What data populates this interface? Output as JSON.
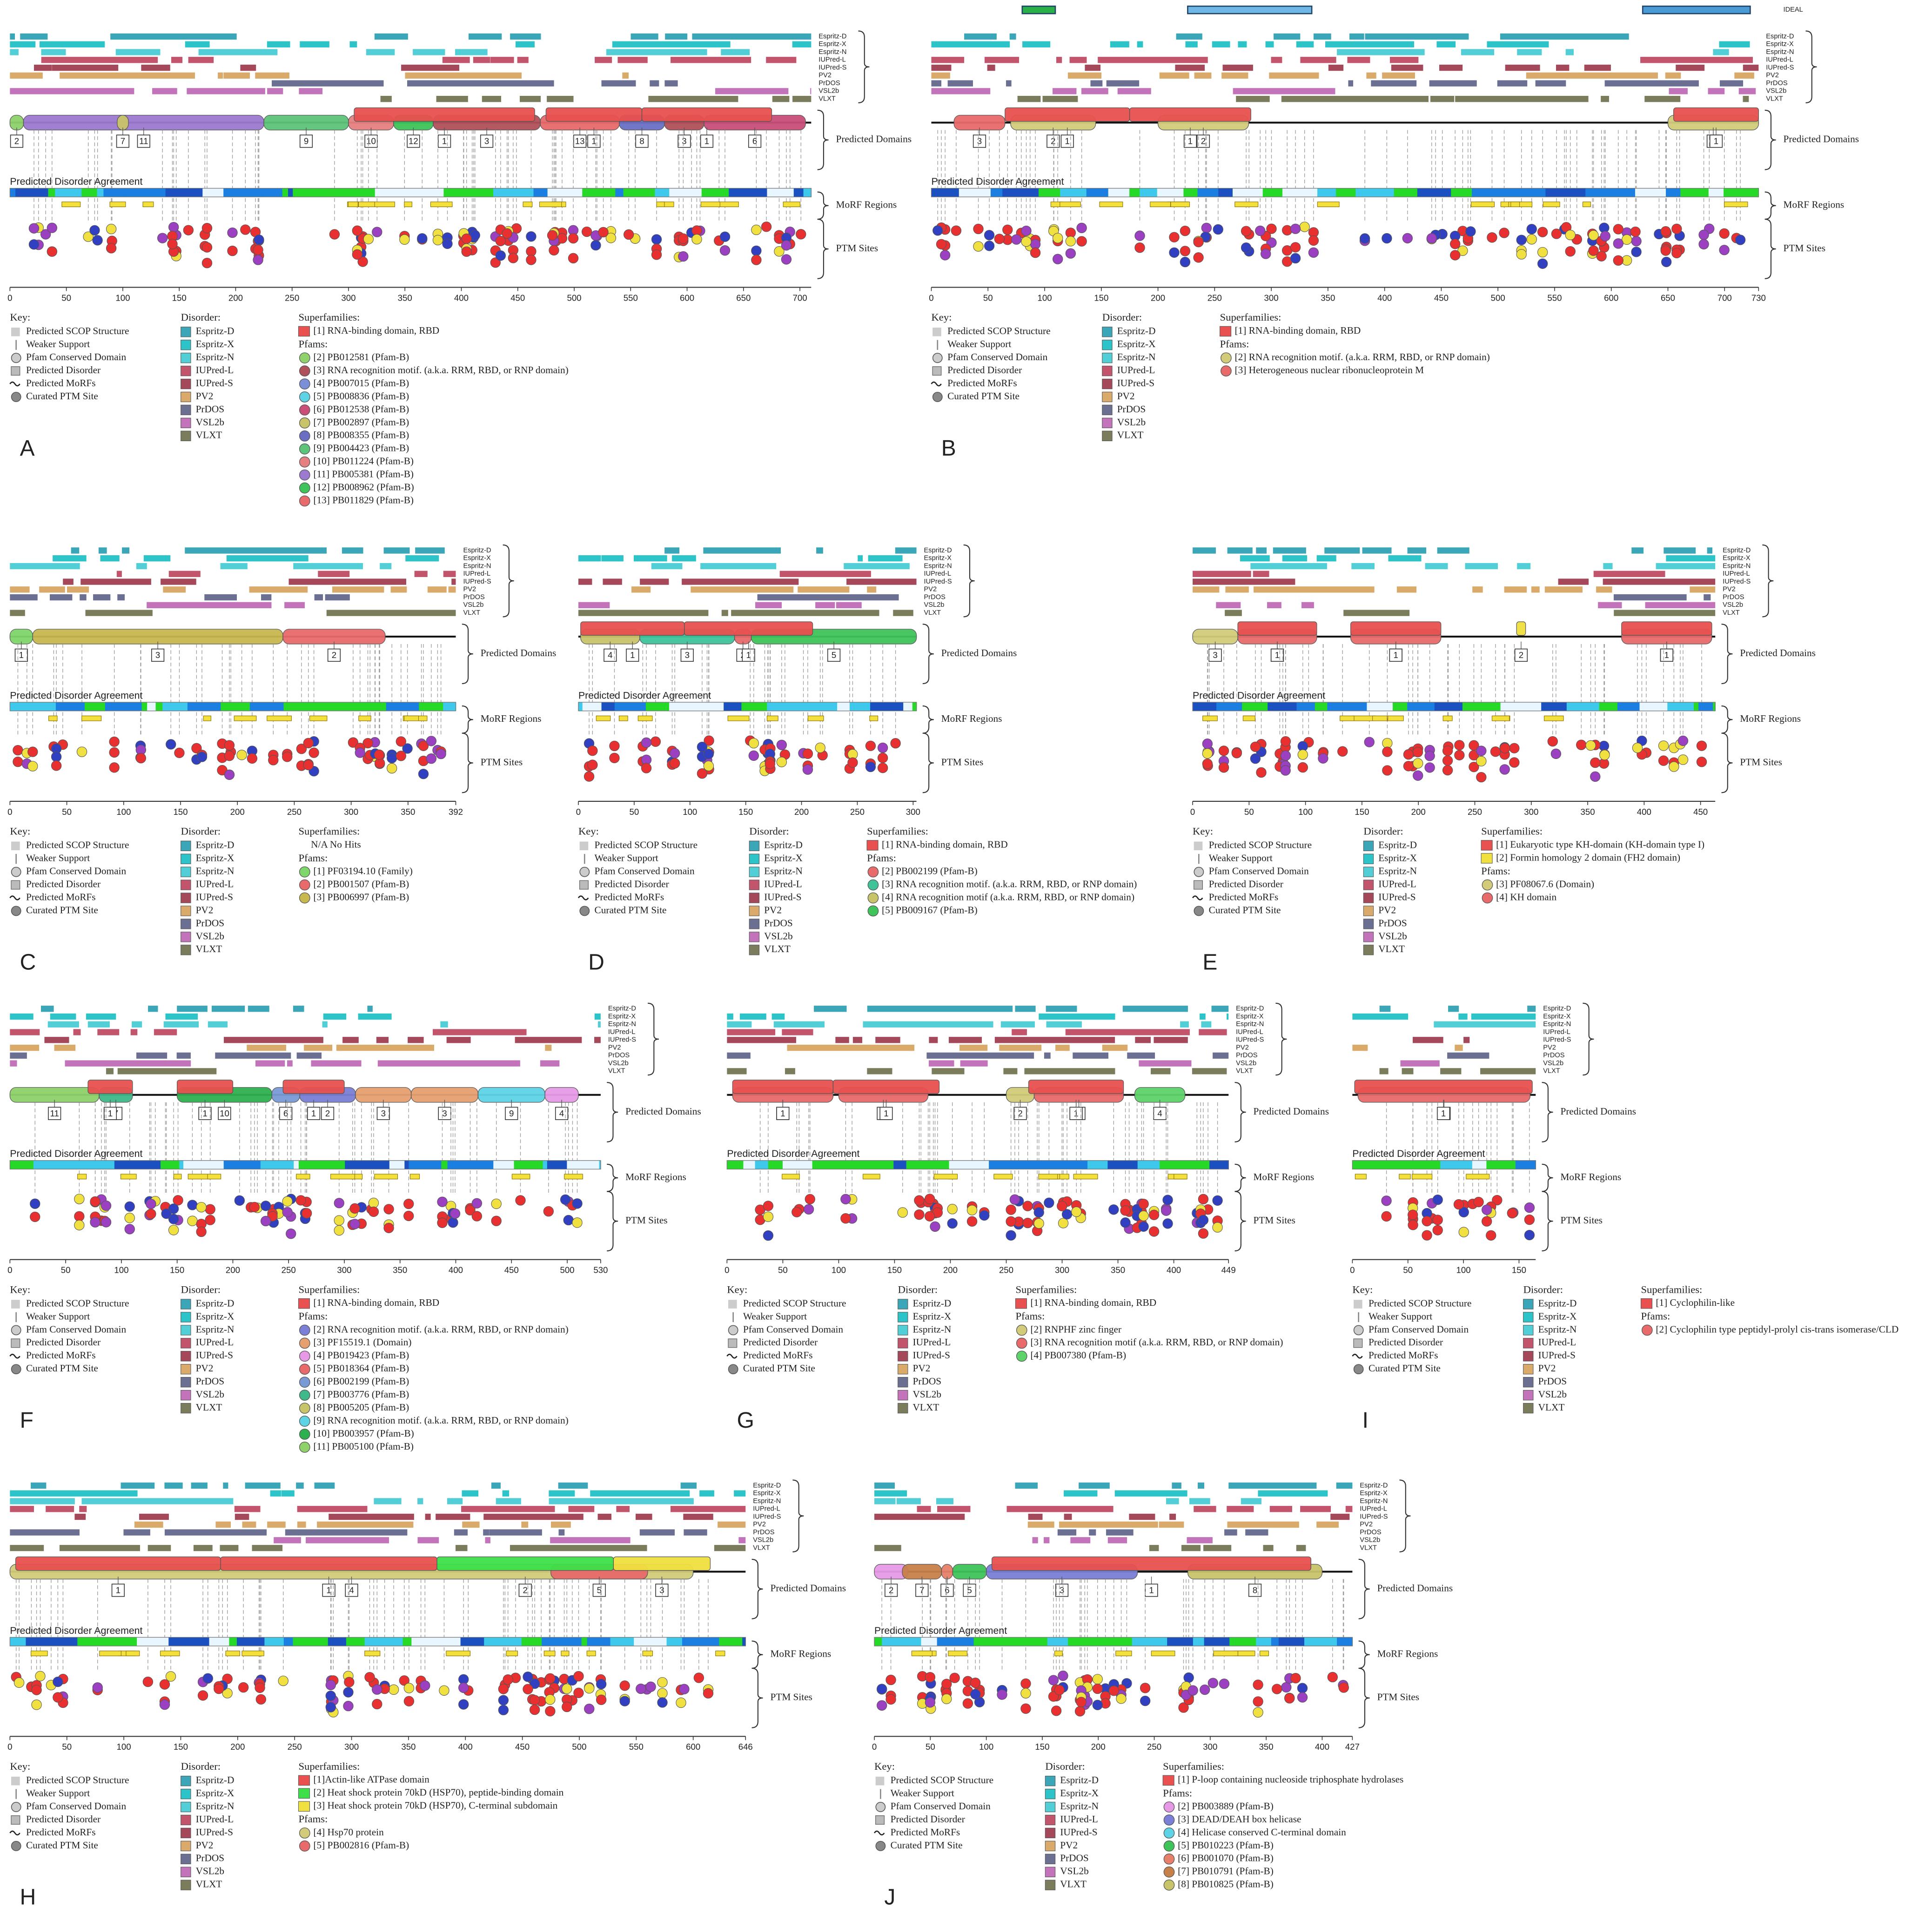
{
  "key": {
    "title": "Key:",
    "items": [
      "Predicted SCOP Structure",
      "Weaker Support",
      "Pfam Conserved Domain",
      "Predicted Disorder",
      "Predicted MoRFs",
      "Curated PTM Site"
    ]
  },
  "disorder": {
    "title": "Disorder:",
    "predictors": [
      {
        "name": "Espritz-D",
        "color": "#3aa6b8"
      },
      {
        "name": "Espritz-X",
        "color": "#2cc3c9"
      },
      {
        "name": "Espritz-N",
        "color": "#52cfd6"
      },
      {
        "name": "IUPred-L",
        "color": "#c2546c"
      },
      {
        "name": "IUPred-S",
        "color": "#a4485a"
      },
      {
        "name": "PV2",
        "color": "#d9aa6a"
      },
      {
        "name": "PrDOS",
        "color": "#6b6f92"
      },
      {
        "name": "VSL2b",
        "color": "#c273ba"
      },
      {
        "name": "VLXT",
        "color": "#7b7c5c"
      }
    ]
  },
  "labels": {
    "domains": "Predicted Domains",
    "morf": "MoRF Regions",
    "ptm": "PTM Sites",
    "agreement": "Predicted Disorder Agreement",
    "superfamilies": "Superfamilies:",
    "pfams": "Pfams:",
    "ideal": "IDEAL"
  },
  "panels": [
    {
      "label": "A",
      "xlim": [
        0,
        710
      ],
      "xticks": [
        0,
        50,
        100,
        150,
        200,
        250,
        300,
        350,
        400,
        450,
        500,
        550,
        600,
        650,
        700
      ],
      "superfamilies": [
        {
          "name": "[1] RNA-binding domain, RBD",
          "color": "#e8514f"
        }
      ],
      "pfams": [
        {
          "name": "[2] PB012581 (Pfam-B)",
          "color": "#8fd16a"
        },
        {
          "name": "[3] RNA recognition motif. (a.k.a. RRM, RBD, or RNP domain)",
          "color": "#b0505a"
        },
        {
          "name": "[4] PB007015 (Pfam-B)",
          "color": "#7b8fd6"
        },
        {
          "name": "[5] PB008836 (Pfam-B)",
          "color": "#5ed3e6"
        },
        {
          "name": "[6] PB012538 (Pfam-B)",
          "color": "#c94f7a"
        },
        {
          "name": "[7] PB002897 (Pfam-B)",
          "color": "#c8c46a"
        },
        {
          "name": "[8] PB008355 (Pfam-B)",
          "color": "#6b6fc4"
        },
        {
          "name": "[9] PB004423 (Pfam-B)",
          "color": "#5dc47a"
        },
        {
          "name": "[10] PB011224 (Pfam-B)",
          "color": "#e68080"
        },
        {
          "name": "[11] PB005381 (Pfam-B)",
          "color": "#9c7ad0"
        },
        {
          "name": "[12] PB008962 (Pfam-B)",
          "color": "#3fc45a"
        },
        {
          "name": "[13] PB011829 (Pfam-B)",
          "color": "#e86a6a"
        }
      ],
      "domains": [
        {
          "label": "2",
          "start": 0,
          "end": 12
        },
        {
          "label": "11",
          "start": 12,
          "end": 225
        },
        {
          "label": "9",
          "start": 225,
          "end": 300
        },
        {
          "label": "7",
          "start": 95,
          "end": 105
        },
        {
          "label": "10",
          "start": 300,
          "end": 340
        },
        {
          "label": "12",
          "start": 340,
          "end": 375
        },
        {
          "label": "3",
          "start": 375,
          "end": 470
        },
        {
          "label": "13",
          "start": 470,
          "end": 540
        },
        {
          "label": "8",
          "start": 540,
          "end": 580
        },
        {
          "label": "3",
          "start": 580,
          "end": 615
        },
        {
          "label": "6",
          "start": 615,
          "end": 705
        },
        {
          "label": "1",
          "start": 305,
          "end": 465
        },
        {
          "label": "1",
          "start": 475,
          "end": 560
        },
        {
          "label": "1",
          "start": 560,
          "end": 675
        }
      ]
    },
    {
      "label": "B",
      "xlim": [
        0,
        730
      ],
      "xticks": [
        0,
        50,
        100,
        150,
        200,
        250,
        300,
        350,
        400,
        450,
        500,
        550,
        600,
        650,
        700,
        730
      ],
      "superfamilies": [
        {
          "name": "[1] RNA-binding domain, RBD",
          "color": "#e8514f"
        }
      ],
      "pfams": [
        {
          "name": "[2] RNA recognition motif. (a.k.a. RRM, RBD, or RNP domain)",
          "color": "#d2cc7a"
        },
        {
          "name": "[3] Heterogeneous nuclear ribonucleoprotein M",
          "color": "#e86a6a"
        }
      ],
      "domains": [
        {
          "label": "3",
          "start": 20,
          "end": 65
        },
        {
          "label": "2",
          "start": 70,
          "end": 145
        },
        {
          "label": "2",
          "start": 200,
          "end": 280
        },
        {
          "label": "2",
          "start": 650,
          "end": 730
        },
        {
          "label": "1",
          "start": 65,
          "end": 175
        },
        {
          "label": "1",
          "start": 175,
          "end": 282
        },
        {
          "label": "1",
          "start": 655,
          "end": 730
        }
      ]
    },
    {
      "label": "C",
      "xlim": [
        0,
        392
      ],
      "xticks": [
        0,
        50,
        100,
        150,
        200,
        250,
        300,
        350,
        392
      ],
      "superfamilies": [
        {
          "name": "N/A No Hits"
        }
      ],
      "pfams": [
        {
          "name": "[1] PF03194.10 (Family)",
          "color": "#7fd66a"
        },
        {
          "name": "[2] PB001507 (Pfam-B)",
          "color": "#e86a6a"
        },
        {
          "name": "[3] PB006997 (Pfam-B)",
          "color": "#c8b850"
        }
      ],
      "domains": [
        {
          "label": "1",
          "start": 0,
          "end": 20
        },
        {
          "label": "3",
          "start": 20,
          "end": 240
        },
        {
          "label": "2",
          "start": 240,
          "end": 330
        }
      ]
    },
    {
      "label": "D",
      "xlim": [
        0,
        303
      ],
      "xticks": [
        0,
        50,
        100,
        150,
        200,
        250,
        300
      ],
      "superfamilies": [
        {
          "name": "[1] RNA-binding domain, RBD",
          "color": "#e8514f"
        }
      ],
      "pfams": [
        {
          "name": "[2] PB002199 (Pfam-B)",
          "color": "#e86a6a"
        },
        {
          "name": "[3] RNA recognition motif. (a.k.a. RRM, RBD, or RNP domain)",
          "color": "#3fc49a"
        },
        {
          "name": "[4] RNA recognition motif (a.k.a. RRM, RBD, or RNP domain)",
          "color": "#c8c46a"
        },
        {
          "name": "[5] PB009167 (Pfam-B)",
          "color": "#3fc45a"
        }
      ],
      "domains": [
        {
          "label": "4",
          "start": 2,
          "end": 55
        },
        {
          "label": "3",
          "start": 55,
          "end": 140
        },
        {
          "label": "2",
          "start": 140,
          "end": 155
        },
        {
          "label": "5",
          "start": 155,
          "end": 303
        },
        {
          "label": "1",
          "start": 2,
          "end": 95
        },
        {
          "label": "1",
          "start": 95,
          "end": 210
        }
      ]
    },
    {
      "label": "E",
      "xlim": [
        0,
        463
      ],
      "xticks": [
        0,
        50,
        100,
        150,
        200,
        250,
        300,
        350,
        400,
        450
      ],
      "superfamilies": [
        {
          "name": "[1] Eukaryotic type KH-domain (KH-domain type I)",
          "color": "#e8514f"
        },
        {
          "name": "[2] Formin homology 2 domain (FH2 domain)",
          "color": "#f0e040"
        }
      ],
      "pfams": [
        {
          "name": "[3] PF08067.6 (Domain)",
          "color": "#d2cc7a"
        },
        {
          "name": "[4] KH domain",
          "color": "#e86a6a"
        }
      ],
      "domains": [
        {
          "label": "3",
          "start": 0,
          "end": 40
        },
        {
          "label": "4",
          "start": 40,
          "end": 110
        },
        {
          "label": "4",
          "start": 140,
          "end": 220
        },
        {
          "label": "4",
          "start": 380,
          "end": 460
        },
        {
          "label": "1",
          "start": 40,
          "end": 110
        },
        {
          "label": "1",
          "start": 140,
          "end": 220
        },
        {
          "label": "2",
          "start": 287,
          "end": 295
        },
        {
          "label": "1",
          "start": 380,
          "end": 460
        }
      ]
    },
    {
      "label": "F",
      "xlim": [
        0,
        530
      ],
      "xticks": [
        0,
        50,
        100,
        150,
        200,
        250,
        300,
        350,
        400,
        450,
        500,
        530
      ],
      "superfamilies": [
        {
          "name": "[1] RNA-binding domain, RBD",
          "color": "#e8514f"
        }
      ],
      "pfams": [
        {
          "name": "[2] RNA recognition motif. (a.k.a. RRM, RBD, or RNP domain)",
          "color": "#7b7fd6"
        },
        {
          "name": "[3] PF15519.1 (Domain)",
          "color": "#e6a070"
        },
        {
          "name": "[4] PB019423 (Pfam-B)",
          "color": "#e69ae6"
        },
        {
          "name": "[5] PB018364 (Pfam-B)",
          "color": "#e86a6a"
        },
        {
          "name": "[6] PB002199 (Pfam-B)",
          "color": "#7a9ad6"
        },
        {
          "name": "[7] PB003776 (Pfam-B)",
          "color": "#3fb88a"
        },
        {
          "name": "[8] PB005205 (Pfam-B)",
          "color": "#c8c46a"
        },
        {
          "name": "[9] RNA recognition motif. (a.k.a. RRM, RBD, or RNP domain)",
          "color": "#5ed3e6"
        },
        {
          "name": "[10] PB003957 (Pfam-B)",
          "color": "#2fb050"
        },
        {
          "name": "[11] PB005100 (Pfam-B)",
          "color": "#8fd16a"
        }
      ],
      "domains": [
        {
          "label": "11",
          "start": 0,
          "end": 80
        },
        {
          "label": "7",
          "start": 80,
          "end": 110
        },
        {
          "label": "10",
          "start": 150,
          "end": 235
        },
        {
          "label": "6",
          "start": 235,
          "end": 260
        },
        {
          "label": "2",
          "start": 260,
          "end": 310
        },
        {
          "label": "3",
          "start": 310,
          "end": 360
        },
        {
          "label": "3",
          "start": 360,
          "end": 420
        },
        {
          "label": "9",
          "start": 420,
          "end": 480
        },
        {
          "label": "4",
          "start": 480,
          "end": 510
        },
        {
          "label": "1",
          "start": 70,
          "end": 110
        },
        {
          "label": "1",
          "start": 150,
          "end": 200
        },
        {
          "label": "1",
          "start": 245,
          "end": 300
        }
      ]
    },
    {
      "label": "G",
      "xlim": [
        0,
        449
      ],
      "xticks": [
        0,
        50,
        100,
        150,
        200,
        250,
        300,
        350,
        400,
        449
      ],
      "superfamilies": [
        {
          "name": "[1] RNA-binding domain, RBD",
          "color": "#e8514f"
        }
      ],
      "pfams": [
        {
          "name": "[2] RNPHF zinc finger",
          "color": "#d2cc7a"
        },
        {
          "name": "[3] RNA recognition motif (a.k.a. RRM, RBD, or RNP domain)",
          "color": "#e86a6a"
        },
        {
          "name": "[4] PB007380 (Pfam-B)",
          "color": "#5ed36a"
        }
      ],
      "domains": [
        {
          "label": "3",
          "start": 5,
          "end": 95
        },
        {
          "label": "3",
          "start": 100,
          "end": 180
        },
        {
          "label": "2",
          "start": 250,
          "end": 275
        },
        {
          "label": "3",
          "start": 275,
          "end": 355
        },
        {
          "label": "4",
          "start": 365,
          "end": 410
        },
        {
          "label": "1",
          "start": 5,
          "end": 95
        },
        {
          "label": "1",
          "start": 95,
          "end": 190
        },
        {
          "label": "1",
          "start": 270,
          "end": 355
        }
      ]
    },
    {
      "label": "I",
      "xlim": [
        0,
        165
      ],
      "xticks": [
        0,
        50,
        100,
        150
      ],
      "superfamilies": [
        {
          "name": "[1] Cyclophilin-like",
          "color": "#e8514f"
        }
      ],
      "pfams": [
        {
          "name": "[2] Cyclophilin type peptidyl-prolyl cis-trans isomerase/CLD",
          "color": "#e86a6a"
        }
      ],
      "domains": [
        {
          "label": "2",
          "start": 5,
          "end": 160
        },
        {
          "label": "1",
          "start": 2,
          "end": 162
        }
      ]
    },
    {
      "label": "H",
      "xlim": [
        0,
        646
      ],
      "xticks": [
        0,
        50,
        100,
        150,
        200,
        250,
        300,
        350,
        400,
        450,
        500,
        550,
        600,
        646
      ],
      "superfamilies": [
        {
          "name": "[1]Actin-like ATPase domain",
          "color": "#e8514f"
        },
        {
          "name": "[2] Heat shock protein 70kD (HSP70), peptide-binding domain",
          "color": "#3ee04a"
        },
        {
          "name": "[3] Heat shock protein 70kD (HSP70), C-terminal subdomain",
          "color": "#f0e040"
        }
      ],
      "pfams": [
        {
          "name": "[4] Hsp70 protein",
          "color": "#d2cc7a"
        },
        {
          "name": "[5] PB002816 (Pfam-B)",
          "color": "#e86a6a"
        }
      ],
      "domains": [
        {
          "label": "4",
          "start": 0,
          "end": 600
        },
        {
          "label": "5",
          "start": 475,
          "end": 560
        },
        {
          "label": "1",
          "start": 5,
          "end": 185
        },
        {
          "label": "1",
          "start": 185,
          "end": 375
        },
        {
          "label": "2",
          "start": 375,
          "end": 530
        },
        {
          "label": "3",
          "start": 530,
          "end": 615
        }
      ]
    },
    {
      "label": "J",
      "xlim": [
        0,
        427
      ],
      "xticks": [
        0,
        50,
        100,
        150,
        200,
        250,
        300,
        350,
        400,
        427
      ],
      "superfamilies": [
        {
          "name": "[1] P-loop containing nucleoside triphosphate hydrolases",
          "color": "#e8514f"
        }
      ],
      "pfams": [
        {
          "name": "[2] PB003889 (Pfam-B)",
          "color": "#e69ae6"
        },
        {
          "name": "[3] DEAD/DEAH box helicase",
          "color": "#7b7fd6"
        },
        {
          "name": "[4] Helicase conserved C-terminal domain",
          "color": "#5ed3e6"
        },
        {
          "name": "[5] PB010223 (Pfam-B)",
          "color": "#3fc45a"
        },
        {
          "name": "[6] PB001070 (Pfam-B)",
          "color": "#e6806a"
        },
        {
          "name": "[7] PB010791 (Pfam-B)",
          "color": "#c8804a"
        },
        {
          "name": "[8] PB010825 (Pfam-B)",
          "color": "#c8c46a"
        }
      ],
      "domains": [
        {
          "label": "2",
          "start": 0,
          "end": 30
        },
        {
          "label": "7",
          "start": 25,
          "end": 60
        },
        {
          "label": "6",
          "start": 60,
          "end": 70
        },
        {
          "label": "5",
          "start": 70,
          "end": 100
        },
        {
          "label": "3",
          "start": 100,
          "end": 235
        },
        {
          "label": "8",
          "start": 280,
          "end": 400
        },
        {
          "label": "1",
          "start": 105,
          "end": 390
        }
      ]
    }
  ]
}
